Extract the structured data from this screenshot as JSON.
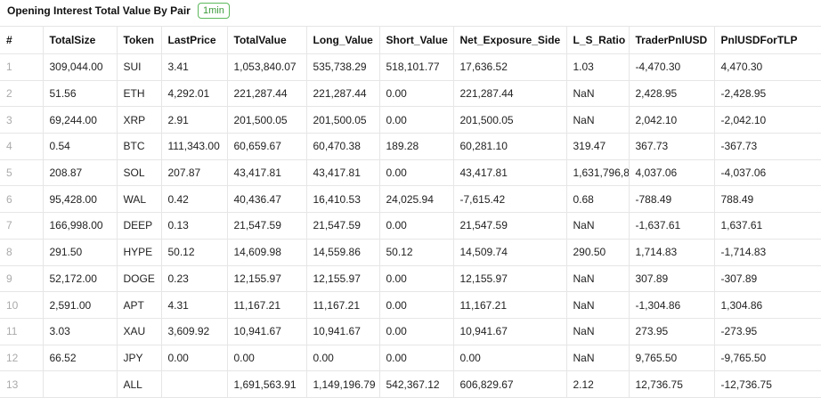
{
  "header": {
    "title": "Opening Interest Total Value By Pair",
    "badge": "1min"
  },
  "table": {
    "columns": [
      "#",
      "TotalSize",
      "Token",
      "LastPrice",
      "TotalValue",
      "Long_Value",
      "Short_Value",
      "Net_Exposure_Side",
      "L_S_Ratio",
      "TraderPnlUSD",
      "PnlUSDForTLP"
    ],
    "rows": [
      [
        "1",
        "309,044.00",
        "SUI",
        "3.41",
        "1,053,840.07",
        "535,738.29",
        "518,101.77",
        "17,636.52",
        "1.03",
        "-4,470.30",
        "4,470.30"
      ],
      [
        "2",
        "51.56",
        "ETH",
        "4,292.01",
        "221,287.44",
        "221,287.44",
        "0.00",
        "221,287.44",
        "NaN",
        "2,428.95",
        "-2,428.95"
      ],
      [
        "3",
        "69,244.00",
        "XRP",
        "2.91",
        "201,500.05",
        "201,500.05",
        "0.00",
        "201,500.05",
        "NaN",
        "2,042.10",
        "-2,042.10"
      ],
      [
        "4",
        "0.54",
        "BTC",
        "111,343.00",
        "60,659.67",
        "60,470.38",
        "189.28",
        "60,281.10",
        "319.47",
        "367.73",
        "-367.73"
      ],
      [
        "5",
        "208.87",
        "SOL",
        "207.87",
        "43,417.81",
        "43,417.81",
        "0.00",
        "43,417.81",
        "1,631,796,8",
        "4,037.06",
        "-4,037.06"
      ],
      [
        "6",
        "95,428.00",
        "WAL",
        "0.42",
        "40,436.47",
        "16,410.53",
        "24,025.94",
        "-7,615.42",
        "0.68",
        "-788.49",
        "788.49"
      ],
      [
        "7",
        "166,998.00",
        "DEEP",
        "0.13",
        "21,547.59",
        "21,547.59",
        "0.00",
        "21,547.59",
        "NaN",
        "-1,637.61",
        "1,637.61"
      ],
      [
        "8",
        "291.50",
        "HYPE",
        "50.12",
        "14,609.98",
        "14,559.86",
        "50.12",
        "14,509.74",
        "290.50",
        "1,714.83",
        "-1,714.83"
      ],
      [
        "9",
        "52,172.00",
        "DOGE",
        "0.23",
        "12,155.97",
        "12,155.97",
        "0.00",
        "12,155.97",
        "NaN",
        "307.89",
        "-307.89"
      ],
      [
        "10",
        "2,591.00",
        "APT",
        "4.31",
        "11,167.21",
        "11,167.21",
        "0.00",
        "11,167.21",
        "NaN",
        "-1,304.86",
        "1,304.86"
      ],
      [
        "11",
        "3.03",
        "XAU",
        "3,609.92",
        "10,941.67",
        "10,941.67",
        "0.00",
        "10,941.67",
        "NaN",
        "273.95",
        "-273.95"
      ],
      [
        "12",
        "66.52",
        "JPY",
        "0.00",
        "0.00",
        "0.00",
        "0.00",
        "0.00",
        "NaN",
        "9,765.50",
        "-9,765.50"
      ],
      [
        "13",
        null,
        "ALL",
        null,
        "1,691,563.91",
        "1,149,196.79",
        "542,367.12",
        "606,829.67",
        "2.12",
        "12,736.75",
        "-12,736.75"
      ]
    ]
  }
}
